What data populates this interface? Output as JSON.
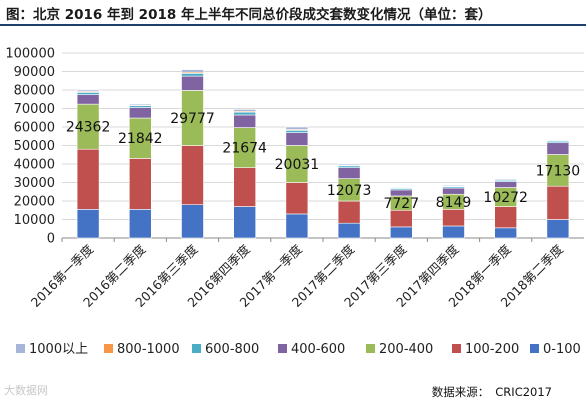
{
  "title": "图：北京 2016 年到 2018 年上半年不同总价段成交套数变化情况（单位：套）",
  "source": {
    "label": "数据来源：",
    "value": "CRIC2017"
  },
  "watermark": "大数据网",
  "chart_data": {
    "type": "bar",
    "stacked": true,
    "categories": [
      "2016第一季度",
      "2016第二季度",
      "2016第三季度",
      "2016第四季度",
      "2017第一季度",
      "2017第二季度",
      "2017第三季度",
      "2017第四季度",
      "2018第一季度",
      "2018第二季度"
    ],
    "ylim": [
      0,
      100000
    ],
    "yticks": [
      0,
      10000,
      20000,
      30000,
      40000,
      50000,
      60000,
      70000,
      80000,
      90000,
      100000
    ],
    "grid": true,
    "legend_position": "bottom",
    "series": [
      {
        "name": "0-100",
        "color": "#4472c4",
        "values": [
          15500,
          15500,
          18000,
          17000,
          13000,
          8000,
          6000,
          6500,
          5500,
          10000
        ]
      },
      {
        "name": "100-200",
        "color": "#c0504d",
        "values": [
          32500,
          27500,
          32000,
          21000,
          17000,
          12000,
          9000,
          9000,
          11500,
          18000
        ]
      },
      {
        "name": "200-400",
        "color": "#9bbb59",
        "values": [
          24362,
          21842,
          29777,
          21674,
          20031,
          12073,
          7727,
          8149,
          10272,
          17130
        ]
      },
      {
        "name": "400-600",
        "color": "#8064a2",
        "values": [
          5138,
          5658,
          7723,
          6826,
          6969,
          5927,
          3273,
          3351,
          3228,
          6370
        ]
      },
      {
        "name": "600-800",
        "color": "#4bacc6",
        "values": [
          1200,
          1000,
          1500,
          1500,
          1200,
          1000,
          800,
          700,
          700,
          800
        ]
      },
      {
        "name": "800-1000",
        "color": "#f79646",
        "values": [
          500,
          400,
          600,
          500,
          500,
          400,
          300,
          300,
          300,
          300
        ]
      },
      {
        "name": "1000以上",
        "color": "#a5b6d9",
        "values": [
          800,
          600,
          1400,
          1000,
          1300,
          600,
          400,
          500,
          500,
          400
        ]
      }
    ],
    "data_labels": {
      "series": "200-400",
      "values": [
        24362,
        21842,
        29777,
        21674,
        20031,
        12073,
        7727,
        8149,
        10272,
        17130
      ]
    }
  }
}
